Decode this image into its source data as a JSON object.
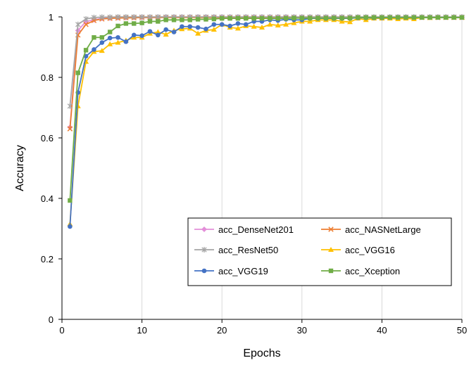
{
  "chart_data": {
    "type": "line",
    "title": "",
    "xlabel": "Epochs",
    "ylabel": "Accuracy",
    "xlim": [
      0,
      50
    ],
    "ylim": [
      0,
      1
    ],
    "xticks": [
      "0",
      "10",
      "20",
      "30",
      "40",
      "50"
    ],
    "yticks": [
      "0",
      "0.2",
      "0.4",
      "0.6",
      "0.8",
      "1"
    ],
    "grid": "vertical",
    "legend_position": "bottom-right",
    "x": [
      1,
      2,
      3,
      4,
      5,
      6,
      7,
      8,
      9,
      10,
      11,
      12,
      13,
      14,
      15,
      16,
      17,
      18,
      19,
      20,
      21,
      22,
      23,
      24,
      25,
      26,
      27,
      28,
      29,
      30,
      31,
      32,
      33,
      34,
      35,
      36,
      37,
      38,
      39,
      40,
      41,
      42,
      43,
      44,
      45,
      46,
      47,
      48,
      49,
      50
    ],
    "series": [
      {
        "name": "acc_DenseNet201",
        "color": "#E38FD9",
        "marker": "diamond",
        "values": [
          0.635,
          0.955,
          0.985,
          0.99,
          0.995,
          0.996,
          0.997,
          0.997,
          0.998,
          0.998,
          0.998,
          0.998,
          0.999,
          0.999,
          0.999,
          0.999,
          0.999,
          0.999,
          0.999,
          0.999,
          0.999,
          0.999,
          0.999,
          0.999,
          0.999,
          0.999,
          0.999,
          0.999,
          0.999,
          0.999,
          0.999,
          0.999,
          0.999,
          0.999,
          0.999,
          0.999,
          0.999,
          0.999,
          0.999,
          0.999,
          0.999,
          0.999,
          0.999,
          0.999,
          0.999,
          0.999,
          0.999,
          0.999,
          0.999,
          0.999
        ]
      },
      {
        "name": "acc_NASNetLarge",
        "color": "#ED7D31",
        "marker": "x",
        "values": [
          0.63,
          0.94,
          0.975,
          0.988,
          0.993,
          0.995,
          0.996,
          0.997,
          0.997,
          0.998,
          0.998,
          0.998,
          0.998,
          0.998,
          0.998,
          0.998,
          0.998,
          0.998,
          0.998,
          0.998,
          0.998,
          0.998,
          0.998,
          0.998,
          0.998,
          0.998,
          0.998,
          0.998,
          0.998,
          0.998,
          0.998,
          0.998,
          0.998,
          0.998,
          0.998,
          0.998,
          0.998,
          0.998,
          0.998,
          0.998,
          0.998,
          0.998,
          0.998,
          0.998,
          0.998,
          0.998,
          0.998,
          0.998,
          0.998,
          0.998
        ]
      },
      {
        "name": "acc_ResNet50",
        "color": "#A5A5A5",
        "marker": "star",
        "values": [
          0.705,
          0.975,
          0.993,
          0.998,
          0.999,
          0.999,
          1.0,
          1.0,
          1.0,
          1.0,
          1.0,
          1.0,
          1.0,
          1.0,
          1.0,
          1.0,
          1.0,
          1.0,
          1.0,
          1.0,
          1.0,
          1.0,
          1.0,
          1.0,
          1.0,
          1.0,
          1.0,
          1.0,
          1.0,
          1.0,
          1.0,
          1.0,
          1.0,
          1.0,
          1.0,
          1.0,
          1.0,
          1.0,
          1.0,
          1.0,
          1.0,
          1.0,
          1.0,
          1.0,
          1.0,
          1.0,
          1.0,
          1.0,
          1.0,
          1.0
        ]
      },
      {
        "name": "acc_VGG16",
        "color": "#FFC000",
        "marker": "triangle",
        "values": [
          0.315,
          0.705,
          0.852,
          0.885,
          0.888,
          0.91,
          0.915,
          0.922,
          0.932,
          0.932,
          0.945,
          0.95,
          0.942,
          0.955,
          0.96,
          0.962,
          0.945,
          0.955,
          0.958,
          0.975,
          0.965,
          0.962,
          0.97,
          0.968,
          0.965,
          0.975,
          0.972,
          0.975,
          0.98,
          0.985,
          0.985,
          0.99,
          0.99,
          0.99,
          0.985,
          0.983,
          0.995,
          0.99,
          0.995,
          0.995,
          0.995,
          0.993,
          0.995,
          0.993,
          0.998,
          0.997,
          0.998,
          0.998,
          0.998,
          0.998
        ]
      },
      {
        "name": "acc_VGG19",
        "color": "#4472C4",
        "marker": "circle",
        "values": [
          0.307,
          0.75,
          0.87,
          0.892,
          0.915,
          0.93,
          0.932,
          0.918,
          0.94,
          0.938,
          0.952,
          0.94,
          0.958,
          0.95,
          0.968,
          0.968,
          0.965,
          0.96,
          0.975,
          0.975,
          0.97,
          0.978,
          0.975,
          0.985,
          0.985,
          0.99,
          0.988,
          0.992,
          0.99,
          0.99,
          0.995,
          0.995,
          0.995,
          0.995,
          0.995,
          0.995,
          0.997,
          0.997,
          0.997,
          0.997,
          0.998,
          0.998,
          0.998,
          0.998,
          0.998,
          0.998,
          0.998,
          0.998,
          0.998,
          0.998
        ]
      },
      {
        "name": "acc_Xception",
        "color": "#70AD47",
        "marker": "square",
        "values": [
          0.393,
          0.815,
          0.89,
          0.932,
          0.932,
          0.95,
          0.97,
          0.978,
          0.978,
          0.98,
          0.985,
          0.985,
          0.99,
          0.99,
          0.99,
          0.99,
          0.992,
          0.992,
          0.993,
          0.995,
          0.995,
          0.995,
          0.995,
          0.995,
          0.995,
          0.995,
          0.995,
          0.995,
          0.996,
          0.996,
          0.996,
          0.996,
          0.996,
          0.996,
          0.996,
          0.996,
          0.998,
          0.998,
          0.998,
          0.998,
          0.998,
          0.998,
          0.998,
          0.998,
          0.998,
          0.998,
          0.998,
          0.998,
          0.998,
          0.998
        ]
      }
    ]
  }
}
